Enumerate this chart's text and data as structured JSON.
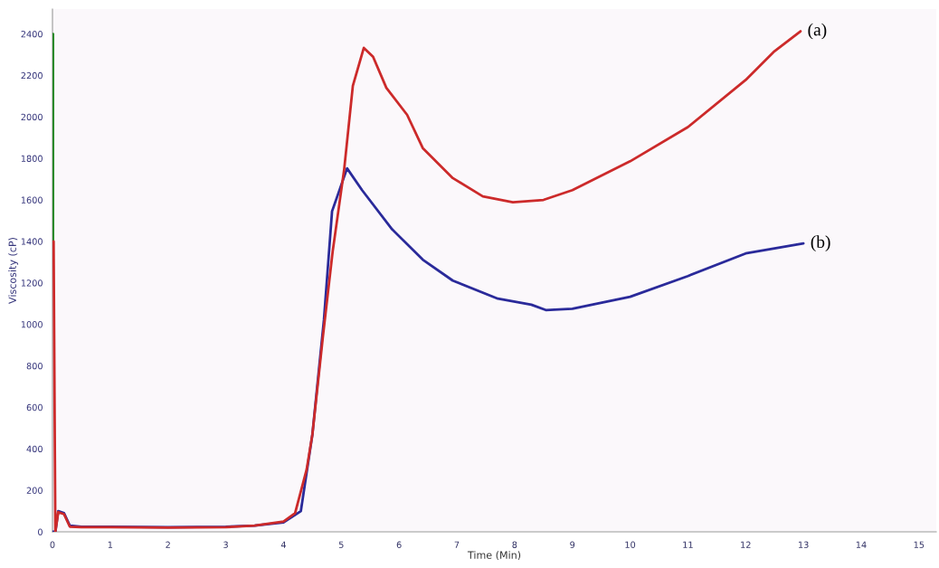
{
  "chart_data": {
    "type": "line",
    "xlabel": "Time (Min)",
    "ylabel": "Viscosity (cP)",
    "xlim": [
      0,
      15.3
    ],
    "ylim": [
      0,
      2520
    ],
    "xticks": [
      0,
      1,
      2,
      3,
      4,
      5,
      6,
      7,
      8,
      9,
      10,
      11,
      12,
      13,
      14,
      15
    ],
    "yticks": [
      0,
      200,
      400,
      600,
      800,
      1000,
      1200,
      1400,
      1600,
      1800,
      2000,
      2200,
      2400
    ],
    "grid": false,
    "legend": false,
    "marker": "none",
    "line_style": "solid",
    "series": [
      {
        "name": "(a)",
        "color": "#cc2a2a",
        "x": [
          0.02,
          0.05,
          0.1,
          0.2,
          0.3,
          0.5,
          1,
          2,
          3,
          3.5,
          4,
          4.2,
          4.4,
          4.5,
          4.68,
          4.85,
          5.05,
          5.2,
          5.39,
          5.55,
          5.78,
          6.14,
          6.41,
          6.93,
          7.45,
          7.97,
          8.5,
          9,
          10,
          11,
          12,
          12.5,
          12.95
        ],
        "values": [
          1400,
          0,
          95,
          85,
          25,
          22,
          22,
          20,
          22,
          30,
          50,
          90,
          300,
          470,
          937,
          1350,
          1748,
          2150,
          2333,
          2290,
          2140,
          2010,
          1850,
          1705,
          1617,
          1589,
          1600,
          1647,
          1786,
          1951,
          2178,
          2317,
          2413
        ]
      },
      {
        "name": "(b)",
        "color": "#2a2a9a",
        "x": [
          0,
          0.05,
          0.1,
          0.2,
          0.3,
          0.5,
          1,
          2,
          3,
          3.5,
          4,
          4.3,
          4.5,
          4.7,
          4.84,
          5.1,
          5.36,
          5.88,
          6.41,
          6.93,
          7.71,
          8.29,
          8.54,
          9,
          10,
          11,
          12,
          13
        ],
        "values": [
          0,
          0,
          100,
          90,
          30,
          25,
          25,
          22,
          25,
          30,
          45,
          100,
          470,
          1024,
          1545,
          1752,
          1647,
          1458,
          1312,
          1211,
          1124,
          1095,
          1069,
          1075,
          1133,
          1233,
          1342,
          1390
        ]
      },
      {
        "color": "#2a8a2a",
        "x": [
          0.01,
          0.01
        ],
        "values": [
          2400,
          1400
        ]
      }
    ]
  }
}
